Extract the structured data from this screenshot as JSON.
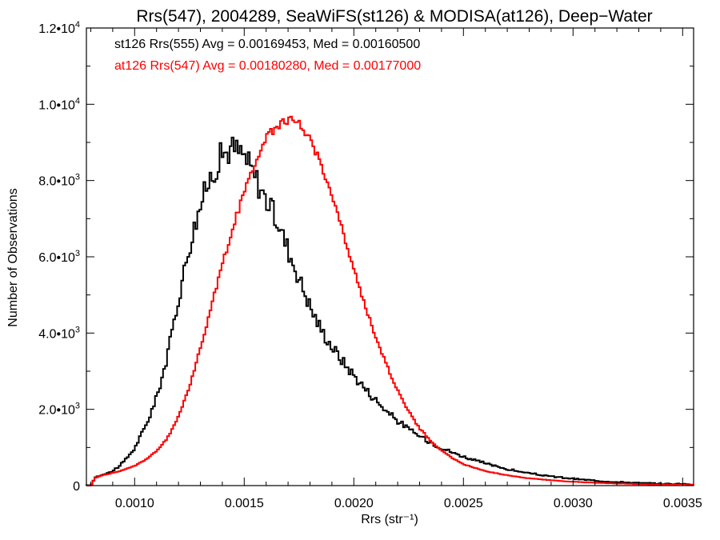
{
  "chart_data": {
    "type": "histogram-step",
    "title": "Rrs(547), 2004289, SeaWiFS(st126) & MODISA(at126), Deep−Water",
    "xlabel": "Rrs (str⁻¹)",
    "ylabel": "Number of Observations",
    "xlim": [
      0.00078,
      0.00355
    ],
    "ylim": [
      0,
      12000
    ],
    "xticks": [
      {
        "value": 0.001,
        "label": "0.0010"
      },
      {
        "value": 0.0015,
        "label": "0.0015"
      },
      {
        "value": 0.002,
        "label": "0.0020"
      },
      {
        "value": 0.0025,
        "label": "0.0025"
      },
      {
        "value": 0.003,
        "label": "0.0030"
      },
      {
        "value": 0.0035,
        "label": "0.0035"
      }
    ],
    "yticks": [
      {
        "value": 0,
        "mant": "0",
        "exp": ""
      },
      {
        "value": 2000,
        "mant": "2.0•10",
        "exp": "3"
      },
      {
        "value": 4000,
        "mant": "4.0•10",
        "exp": "3"
      },
      {
        "value": 6000,
        "mant": "6.0•10",
        "exp": "3"
      },
      {
        "value": 8000,
        "mant": "8.0•10",
        "exp": "3"
      },
      {
        "value": 10000,
        "mant": "1.0•10",
        "exp": "4"
      },
      {
        "value": 12000,
        "mant": "1.2•10",
        "exp": "4"
      }
    ],
    "grid": false,
    "legend_position": "top-left",
    "series": [
      {
        "name": "st126 Rrs(555) Avg = 0.00169453, Med = 0.00160500",
        "color": "#000000",
        "points": [
          [
            0.0008,
            0
          ],
          [
            0.00082,
            220
          ],
          [
            0.00085,
            280
          ],
          [
            0.0009,
            380
          ],
          [
            0.00095,
            620
          ],
          [
            0.001,
            980
          ],
          [
            0.00105,
            1550
          ],
          [
            0.0011,
            2300
          ],
          [
            0.00115,
            3400
          ],
          [
            0.0012,
            4900
          ],
          [
            0.00125,
            6300
          ],
          [
            0.0013,
            7350
          ],
          [
            0.00135,
            8150
          ],
          [
            0.0014,
            8700
          ],
          [
            0.00145,
            8850
          ],
          [
            0.0015,
            8650
          ],
          [
            0.00155,
            8100
          ],
          [
            0.0016,
            7500
          ],
          [
            0.00165,
            6950
          ],
          [
            0.0017,
            6200
          ],
          [
            0.00175,
            5450
          ],
          [
            0.0018,
            4700
          ],
          [
            0.00185,
            4100
          ],
          [
            0.0019,
            3650
          ],
          [
            0.00195,
            3250
          ],
          [
            0.002,
            2900
          ],
          [
            0.00205,
            2550
          ],
          [
            0.0021,
            2250
          ],
          [
            0.00215,
            1950
          ],
          [
            0.0022,
            1700
          ],
          [
            0.00225,
            1480
          ],
          [
            0.0023,
            1300
          ],
          [
            0.00235,
            1140
          ],
          [
            0.0024,
            990
          ],
          [
            0.00245,
            870
          ],
          [
            0.0025,
            760
          ],
          [
            0.0026,
            580
          ],
          [
            0.0027,
            430
          ],
          [
            0.0028,
            320
          ],
          [
            0.0029,
            240
          ],
          [
            0.003,
            180
          ],
          [
            0.0031,
            130
          ],
          [
            0.0032,
            95
          ],
          [
            0.0033,
            70
          ],
          [
            0.0034,
            50
          ],
          [
            0.00355,
            35
          ]
        ]
      },
      {
        "name": "at126 Rrs(547) Avg = 0.00180280, Med = 0.00177000",
        "color": "#ff0000",
        "points": [
          [
            0.0008,
            0
          ],
          [
            0.00082,
            200
          ],
          [
            0.00085,
            270
          ],
          [
            0.0009,
            330
          ],
          [
            0.00095,
            410
          ],
          [
            0.001,
            520
          ],
          [
            0.00105,
            680
          ],
          [
            0.0011,
            900
          ],
          [
            0.00115,
            1250
          ],
          [
            0.0012,
            1800
          ],
          [
            0.00125,
            2600
          ],
          [
            0.0013,
            3600
          ],
          [
            0.00135,
            4700
          ],
          [
            0.0014,
            5800
          ],
          [
            0.00145,
            6800
          ],
          [
            0.0015,
            7700
          ],
          [
            0.00155,
            8500
          ],
          [
            0.0016,
            9100
          ],
          [
            0.00165,
            9450
          ],
          [
            0.0017,
            9600
          ],
          [
            0.00175,
            9500
          ],
          [
            0.0018,
            9100
          ],
          [
            0.00185,
            8450
          ],
          [
            0.0019,
            7600
          ],
          [
            0.00195,
            6650
          ],
          [
            0.002,
            5650
          ],
          [
            0.00205,
            4750
          ],
          [
            0.0021,
            3900
          ],
          [
            0.00215,
            3150
          ],
          [
            0.0022,
            2500
          ],
          [
            0.00225,
            1950
          ],
          [
            0.0023,
            1500
          ],
          [
            0.00235,
            1180
          ],
          [
            0.0024,
            920
          ],
          [
            0.00245,
            720
          ],
          [
            0.0025,
            560
          ],
          [
            0.0026,
            380
          ],
          [
            0.0027,
            270
          ],
          [
            0.0028,
            190
          ],
          [
            0.0029,
            140
          ],
          [
            0.003,
            100
          ],
          [
            0.0031,
            75
          ],
          [
            0.0032,
            55
          ],
          [
            0.0033,
            40
          ],
          [
            0.0034,
            30
          ],
          [
            0.00355,
            20
          ]
        ]
      }
    ]
  }
}
